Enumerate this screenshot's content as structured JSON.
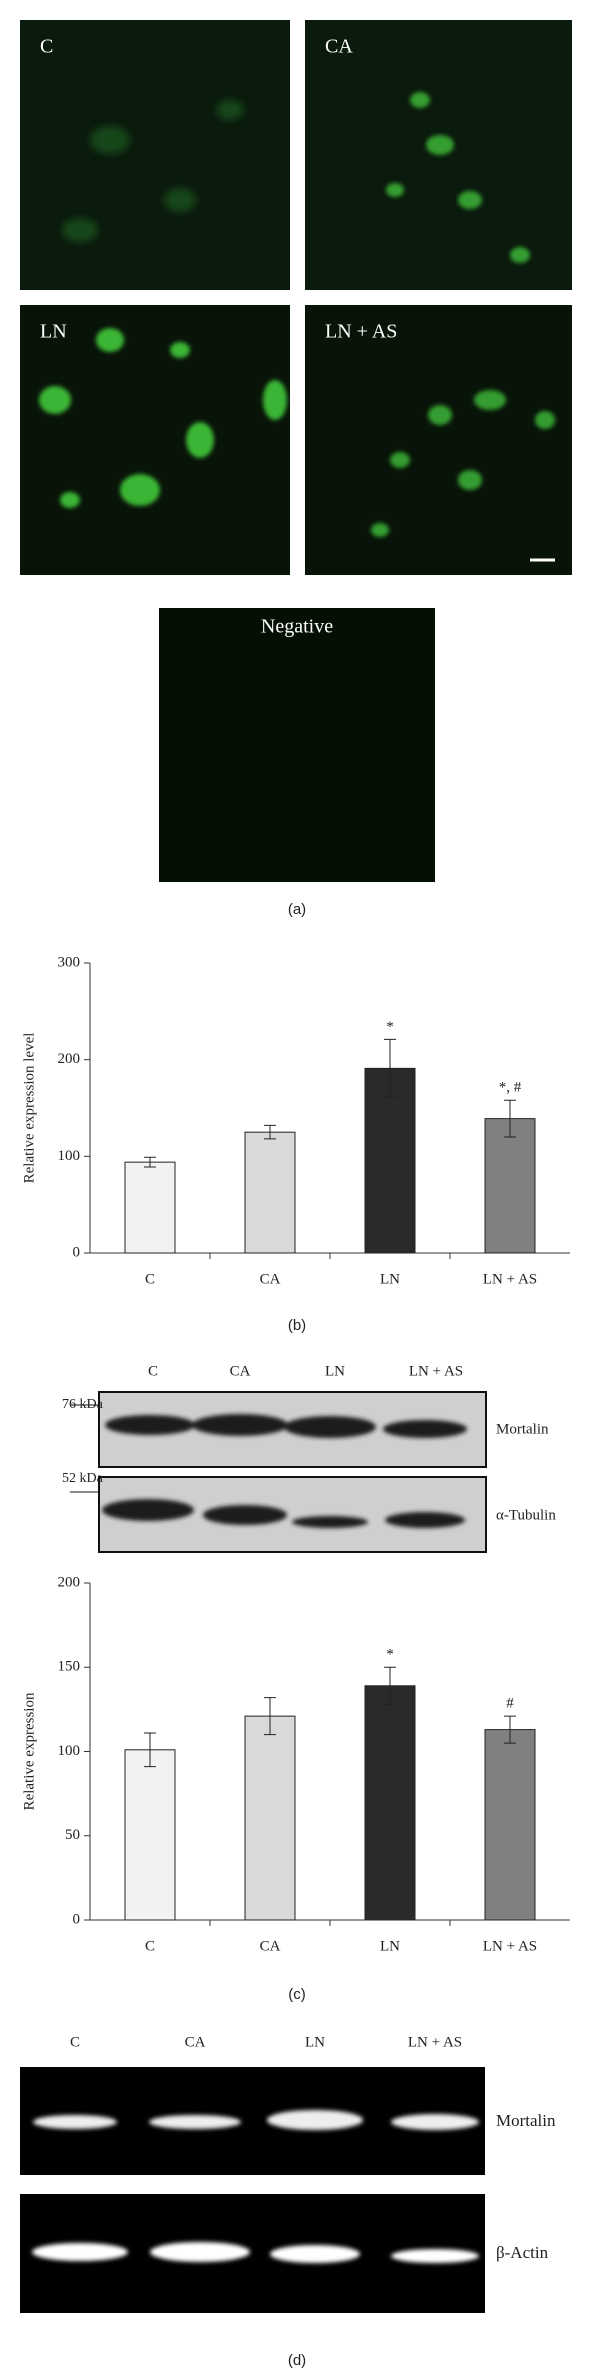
{
  "micrographs": {
    "labels": [
      "C",
      "CA",
      "LN",
      "LN + AS"
    ],
    "negative": "Negative"
  },
  "panel_labels": [
    "(a)",
    "(b)",
    "(c)",
    "(d)"
  ],
  "chart_data": [
    {
      "type": "bar",
      "ylabel": "Relative expression level",
      "categories": [
        "C",
        "CA",
        "LN",
        "LN + AS"
      ],
      "values": [
        94,
        125,
        191,
        139
      ],
      "errors": [
        5,
        7,
        30,
        19
      ],
      "colors": [
        "#f2f2f2",
        "#d9d9d9",
        "#2a2a2a",
        "#808080"
      ],
      "annotations": [
        null,
        null,
        "*",
        "*, #"
      ],
      "ylim": [
        0,
        300
      ],
      "yticks": [
        0,
        100,
        200,
        300
      ]
    },
    {
      "type": "bar",
      "ylabel": "Relative expression",
      "categories": [
        "C",
        "CA",
        "LN",
        "LN + AS"
      ],
      "values": [
        101,
        121,
        139,
        113
      ],
      "errors": [
        10,
        11,
        11,
        8
      ],
      "colors": [
        "#f2f2f2",
        "#d9d9d9",
        "#2a2a2a",
        "#808080"
      ],
      "annotations": [
        null,
        null,
        "*",
        "#"
      ],
      "ylim": [
        0,
        200
      ],
      "yticks": [
        0,
        50,
        100,
        150,
        200
      ]
    }
  ],
  "western_blot": {
    "lanes": [
      "C",
      "CA",
      "LN",
      "LN + AS"
    ],
    "markers": [
      "76 kDa",
      "52 kDa"
    ],
    "bands": [
      "Mortalin",
      "α-Tubulin"
    ]
  },
  "gel": {
    "lanes": [
      "C",
      "CA",
      "LN",
      "LN + AS"
    ],
    "bands": [
      "Mortalin",
      "β-Actin"
    ]
  }
}
